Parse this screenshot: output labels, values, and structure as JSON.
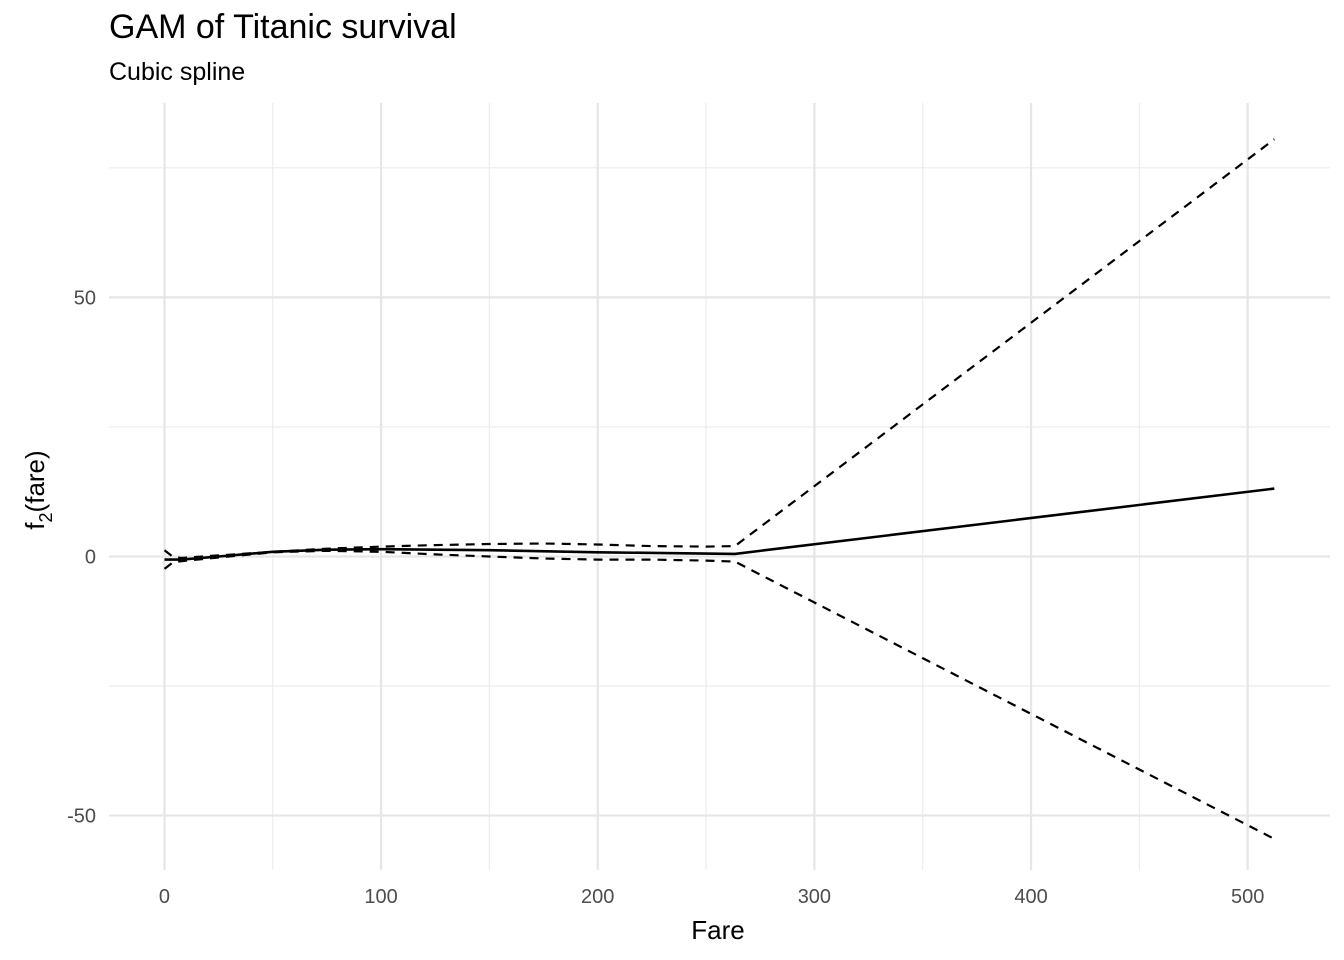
{
  "chart_data": {
    "type": "line",
    "title": "GAM of Titanic survival",
    "subtitle": "Cubic spline",
    "xlabel": "Fare",
    "ylabel": {
      "base": "f",
      "subscript": "2",
      "rest": "(fare)"
    },
    "xlim": [
      -25.6,
      538
    ],
    "ylim": [
      -60.5,
      87.5
    ],
    "x_ticks": [
      0,
      100,
      200,
      300,
      400,
      500
    ],
    "y_ticks": [
      -50,
      0,
      50
    ],
    "x_tick_labels": [
      "0",
      "100",
      "200",
      "300",
      "400",
      "500"
    ],
    "y_tick_labels": [
      "-50",
      "0",
      "50"
    ],
    "grid": true,
    "legend": "none",
    "series": [
      {
        "style": "solid",
        "x": [
          0,
          8,
          25,
          50,
          75,
          100,
          150,
          200,
          263.3,
          512.3
        ],
        "y": [
          -0.6,
          -0.6,
          0.0,
          0.9,
          1.3,
          1.4,
          1.2,
          0.8,
          0.5,
          13.1
        ]
      },
      {
        "style": "dashed",
        "x": [
          0,
          4,
          8,
          25,
          50,
          75,
          100,
          125,
          150,
          175,
          200,
          225,
          250,
          263.3,
          512.3
        ],
        "y": [
          1.2,
          -0.1,
          -0.3,
          0.2,
          0.9,
          1.5,
          1.9,
          2.2,
          2.4,
          2.5,
          2.3,
          2.0,
          1.9,
          2.0,
          80.5
        ]
      },
      {
        "style": "dashed",
        "x": [
          0,
          4,
          8,
          25,
          50,
          75,
          100,
          125,
          150,
          175,
          200,
          225,
          250,
          263.3,
          512.3
        ],
        "y": [
          -2.4,
          -1.1,
          -0.9,
          -0.2,
          0.8,
          1.1,
          0.9,
          0.4,
          0.0,
          -0.4,
          -0.6,
          -0.6,
          -0.8,
          -1.0,
          -54.5
        ]
      }
    ]
  }
}
